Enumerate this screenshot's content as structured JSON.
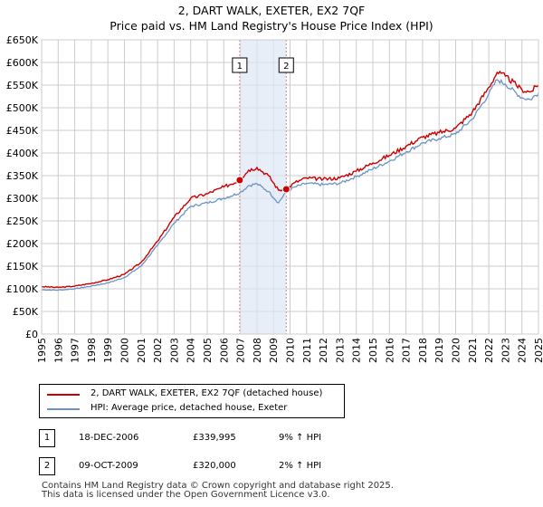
{
  "title": "2, DART WALK, EXETER, EX2 7QF",
  "subtitle": "Price paid vs. HM Land Registry's House Price Index (HPI)",
  "colors": {
    "property": "#cc0000",
    "hpi": "#6b93c8",
    "shade": "#dde7f5",
    "vline": "#e08080"
  },
  "chart_data": {
    "type": "line",
    "title": "2, DART WALK, EXETER, EX2 7QF",
    "xlabel": "",
    "ylabel": "",
    "xlim": [
      1995,
      2025
    ],
    "ylim": [
      0,
      650000
    ],
    "x_ticks": [
      "1995",
      "1996",
      "1997",
      "1998",
      "1999",
      "2000",
      "2001",
      "2002",
      "2003",
      "2004",
      "2005",
      "2006",
      "2007",
      "2008",
      "2009",
      "2010",
      "2011",
      "2012",
      "2013",
      "2014",
      "2015",
      "2016",
      "2017",
      "2018",
      "2019",
      "2020",
      "2021",
      "2022",
      "2023",
      "2024",
      "2025"
    ],
    "y_ticks": [
      "£0",
      "£50K",
      "£100K",
      "£150K",
      "£200K",
      "£250K",
      "£300K",
      "£350K",
      "£400K",
      "£450K",
      "£500K",
      "£550K",
      "£600K",
      "£650K"
    ],
    "grid": true,
    "shaded_span": [
      2006.96,
      2009.77
    ],
    "series": [
      {
        "name": "2, DART WALK, EXETER, EX2 7QF (detached house)",
        "points": [
          [
            1995,
            105000
          ],
          [
            1996,
            103000
          ],
          [
            1997,
            106000
          ],
          [
            1998,
            112000
          ],
          [
            1999,
            120000
          ],
          [
            2000,
            132000
          ],
          [
            2001,
            158000
          ],
          [
            2002,
            205000
          ],
          [
            2003,
            258000
          ],
          [
            2004,
            300000
          ],
          [
            2005,
            310000
          ],
          [
            2006,
            325000
          ],
          [
            2006.96,
            339995
          ],
          [
            2007.5,
            362000
          ],
          [
            2008,
            368000
          ],
          [
            2008.7,
            350000
          ],
          [
            2009.3,
            318000
          ],
          [
            2009.77,
            320000
          ],
          [
            2010.3,
            335000
          ],
          [
            2011,
            345000
          ],
          [
            2012,
            342000
          ],
          [
            2013,
            345000
          ],
          [
            2014,
            360000
          ],
          [
            2015,
            378000
          ],
          [
            2016,
            395000
          ],
          [
            2017,
            415000
          ],
          [
            2018,
            435000
          ],
          [
            2019,
            445000
          ],
          [
            2020,
            455000
          ],
          [
            2021,
            490000
          ],
          [
            2022,
            545000
          ],
          [
            2022.5,
            578000
          ],
          [
            2023,
            570000
          ],
          [
            2024,
            540000
          ],
          [
            2024.5,
            535000
          ],
          [
            2025,
            550000
          ]
        ]
      },
      {
        "name": "HPI: Average price, detached house, Exeter",
        "points": [
          [
            1995,
            98000
          ],
          [
            1996,
            97000
          ],
          [
            1997,
            100000
          ],
          [
            1998,
            106000
          ],
          [
            1999,
            113000
          ],
          [
            2000,
            125000
          ],
          [
            2001,
            150000
          ],
          [
            2002,
            196000
          ],
          [
            2003,
            245000
          ],
          [
            2004,
            282000
          ],
          [
            2005,
            290000
          ],
          [
            2006,
            300000
          ],
          [
            2006.96,
            312000
          ],
          [
            2007.5,
            328000
          ],
          [
            2008,
            332000
          ],
          [
            2008.7,
            315000
          ],
          [
            2009.3,
            290000
          ],
          [
            2009.77,
            315000
          ],
          [
            2010.3,
            325000
          ],
          [
            2011,
            333000
          ],
          [
            2012,
            330000
          ],
          [
            2013,
            333000
          ],
          [
            2014,
            348000
          ],
          [
            2015,
            365000
          ],
          [
            2016,
            382000
          ],
          [
            2017,
            402000
          ],
          [
            2018,
            422000
          ],
          [
            2019,
            432000
          ],
          [
            2020,
            442000
          ],
          [
            2021,
            475000
          ],
          [
            2022,
            530000
          ],
          [
            2022.5,
            562000
          ],
          [
            2023,
            552000
          ],
          [
            2024,
            522000
          ],
          [
            2024.5,
            518000
          ],
          [
            2025,
            532000
          ]
        ]
      }
    ],
    "markers": [
      {
        "label": "1",
        "x": 2006.96,
        "y": 339995
      },
      {
        "label": "2",
        "x": 2009.77,
        "y": 320000
      }
    ]
  },
  "legend": {
    "items": [
      "2, DART WALK, EXETER, EX2 7QF (detached house)",
      "HPI: Average price, detached house, Exeter"
    ]
  },
  "sales": [
    {
      "num": "1",
      "date": "18-DEC-2006",
      "price": "£339,995",
      "hpi": "9% ↑ HPI"
    },
    {
      "num": "2",
      "date": "09-OCT-2009",
      "price": "£320,000",
      "hpi": "2% ↑ HPI"
    }
  ],
  "footer": {
    "line1": "Contains HM Land Registry data © Crown copyright and database right 2025.",
    "line2": "This data is licensed under the Open Government Licence v3.0."
  }
}
